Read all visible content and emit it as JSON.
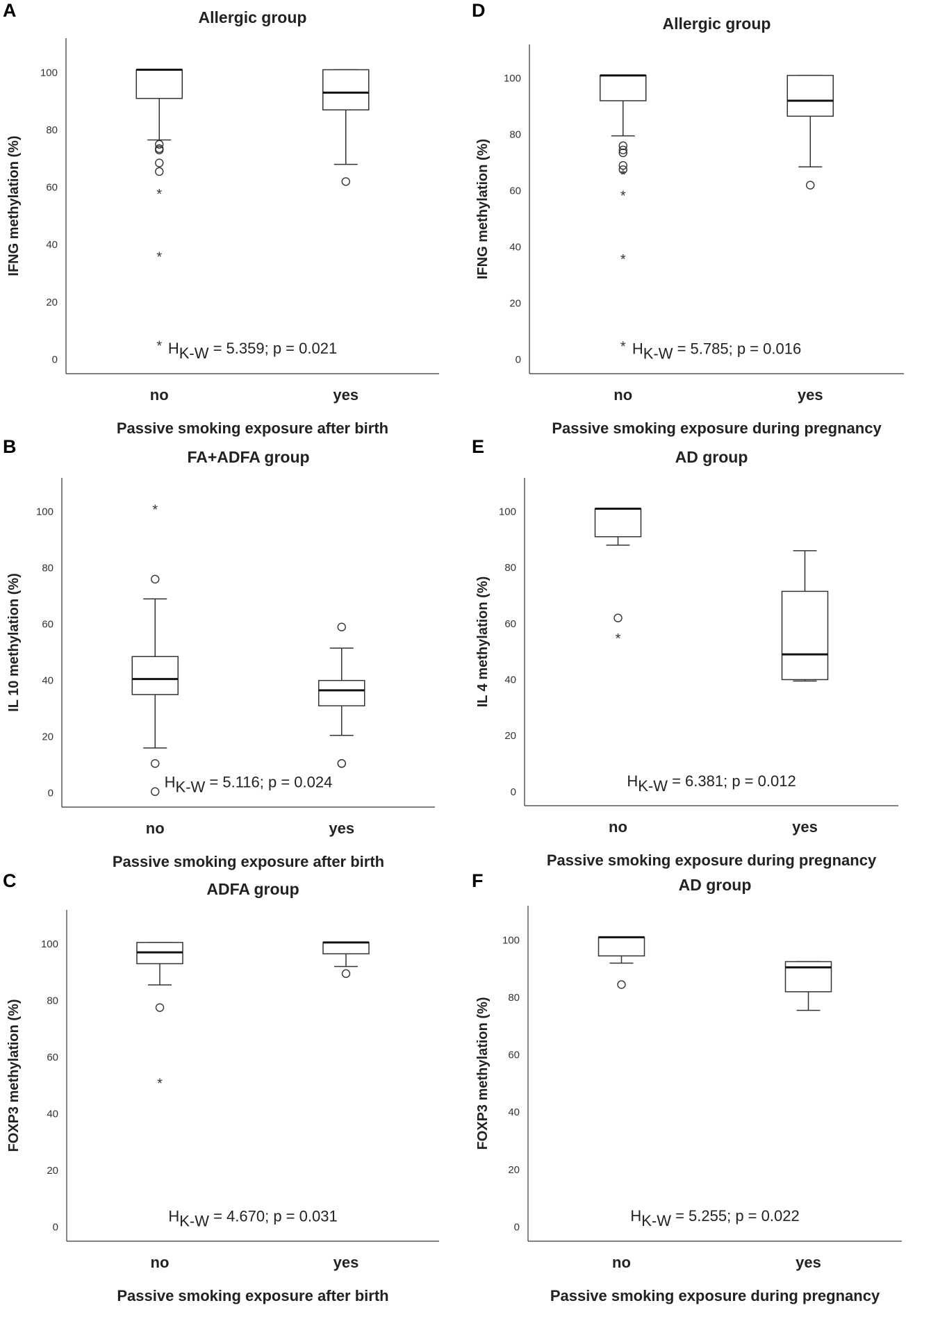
{
  "figure": {
    "y_ticks": [
      "0",
      "20",
      "40",
      "60",
      "80",
      "100"
    ],
    "panel_layout": "3 rows x 2 columns"
  },
  "chart_data": [
    {
      "type": "box",
      "panel_label": "A",
      "title": "Allergic group",
      "ylabel": "IFNG methylation (%)",
      "xlabel": "Passive smoking exposure after birth",
      "categories": [
        "no",
        "yes"
      ],
      "ylim": [
        -5,
        112
      ],
      "annotation": {
        "prefix": "H",
        "subscript": "K-W",
        "rest": " = 5.359; p = 0.021"
      },
      "boxes": [
        {
          "q1": 91,
          "median": 101,
          "q3": 101,
          "whisker_low": 76.5,
          "whisker_high": 101,
          "outliers": [
            75,
            73.5,
            73,
            68.5,
            65.5
          ],
          "extremes": [
            58,
            36,
            5
          ]
        },
        {
          "q1": 87,
          "median": 93,
          "q3": 101,
          "whisker_low": 68,
          "whisker_high": 101,
          "outliers": [
            62
          ],
          "extremes": []
        }
      ]
    },
    {
      "type": "box",
      "panel_label": "D",
      "title": "Allergic group",
      "ylabel": "IFNG methylation (%)",
      "xlabel": "Passive smoking exposure during pregnancy",
      "categories": [
        "no",
        "yes"
      ],
      "ylim": [
        -5,
        112
      ],
      "annotation": {
        "prefix": "H",
        "subscript": "K-W",
        "rest": " = 5.785; p = 0.016"
      },
      "boxes": [
        {
          "q1": 92,
          "median": 101,
          "q3": 101,
          "whisker_low": 79.5,
          "whisker_high": 101,
          "outliers": [
            76,
            74.5,
            73.5,
            69,
            67.5
          ],
          "extremes": [
            66,
            58.5,
            36,
            5
          ]
        },
        {
          "q1": 86.5,
          "median": 92,
          "q3": 101,
          "whisker_low": 68.5,
          "whisker_high": 101,
          "outliers": [
            62
          ],
          "extremes": []
        }
      ]
    },
    {
      "type": "box",
      "panel_label": "B",
      "title": "FA+ADFA group",
      "ylabel": "IL 10 methylation (%)",
      "xlabel": "Passive smoking exposure after birth",
      "categories": [
        "no",
        "yes"
      ],
      "ylim": [
        -5,
        112
      ],
      "annotation": {
        "prefix": "H",
        "subscript": "K-W",
        "rest": " = 5.116; p = 0.024"
      },
      "boxes": [
        {
          "q1": 35,
          "median": 40.5,
          "q3": 48.5,
          "whisker_low": 16,
          "whisker_high": 69,
          "outliers": [
            76,
            10.5,
            0.5
          ],
          "extremes": [
            101
          ]
        },
        {
          "q1": 31,
          "median": 36.5,
          "q3": 40,
          "whisker_low": 20.5,
          "whisker_high": 51.5,
          "outliers": [
            59,
            10.5,
            10.5
          ],
          "extremes": []
        }
      ]
    },
    {
      "type": "box",
      "panel_label": "E",
      "title": "AD group",
      "ylabel": "IL 4 methylation (%)",
      "xlabel": "Passive smoking exposure during pregnancy",
      "categories": [
        "no",
        "yes"
      ],
      "ylim": [
        -5,
        112
      ],
      "annotation": {
        "prefix": "H",
        "subscript": "K-W",
        "rest": " = 6.381; p = 0.012"
      },
      "boxes": [
        {
          "q1": 91,
          "median": 101,
          "q3": 101,
          "whisker_low": 88,
          "whisker_high": 101,
          "outliers": [
            62
          ],
          "extremes": [
            55
          ]
        },
        {
          "q1": 40,
          "median": 49,
          "q3": 71.5,
          "whisker_low": 39.5,
          "whisker_high": 86,
          "outliers": [],
          "extremes": []
        }
      ]
    },
    {
      "type": "box",
      "panel_label": "C",
      "title": "ADFA group",
      "ylabel": "FOXP3 methylation (%)",
      "xlabel": "Passive smoking exposure after birth",
      "categories": [
        "no",
        "yes"
      ],
      "ylim": [
        -5,
        112
      ],
      "annotation": {
        "prefix": "H",
        "subscript": "K-W",
        "rest": " = 4.670; p = 0.031"
      },
      "boxes": [
        {
          "q1": 93,
          "median": 97,
          "q3": 100.5,
          "whisker_low": 85.5,
          "whisker_high": 100.5,
          "outliers": [
            77.5
          ],
          "extremes": [
            51
          ]
        },
        {
          "q1": 96.5,
          "median": 100.5,
          "q3": 100.5,
          "whisker_low": 92,
          "whisker_high": 100.5,
          "outliers": [
            89.5
          ],
          "extremes": []
        }
      ]
    },
    {
      "type": "box",
      "panel_label": "F",
      "title": "AD group",
      "ylabel": "FOXP3 methylation (%)",
      "xlabel": "Passive smoking exposure during pregnancy",
      "categories": [
        "no",
        "yes"
      ],
      "ylim": [
        -5,
        112
      ],
      "annotation": {
        "prefix": "H",
        "subscript": "K-W",
        "rest": " = 5.255; p = 0.022"
      },
      "boxes": [
        {
          "q1": 94.5,
          "median": 101,
          "q3": 101,
          "whisker_low": 92,
          "whisker_high": 101,
          "outliers": [
            84.5
          ],
          "extremes": []
        },
        {
          "q1": 82,
          "median": 90.5,
          "q3": 92.5,
          "whisker_low": 75.5,
          "whisker_high": 92.5,
          "outliers": [],
          "extremes": []
        }
      ]
    }
  ]
}
